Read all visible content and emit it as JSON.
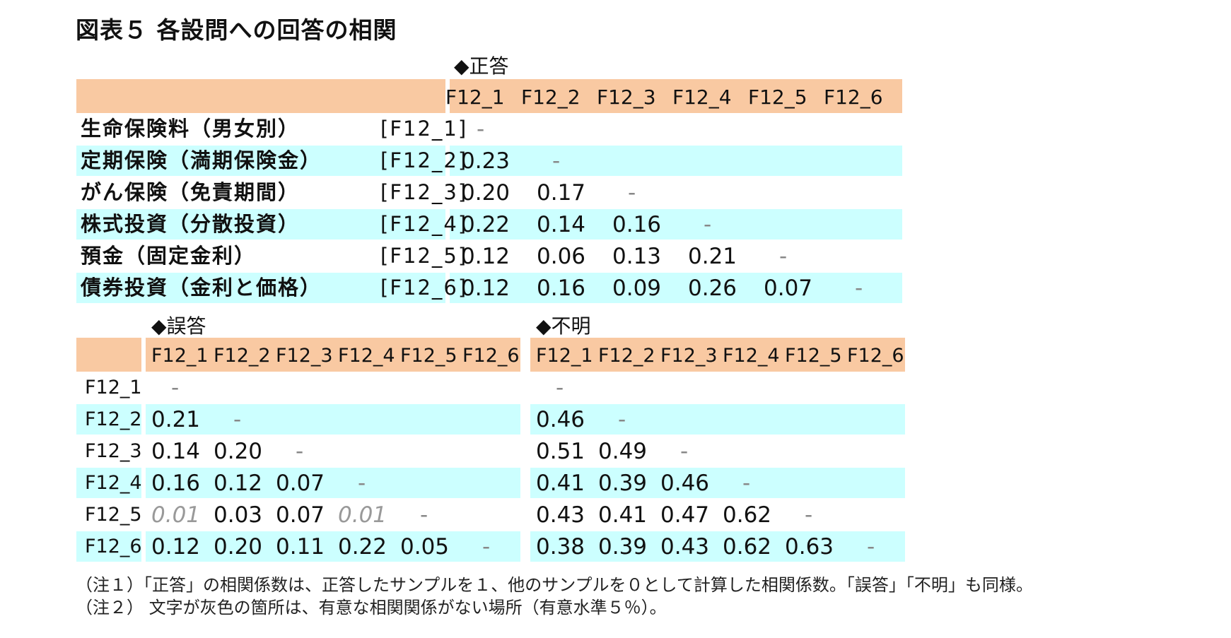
{
  "title": "図表５ 各設問への回答の相関",
  "chart_data": [
    {
      "type": "table",
      "title": "◆正答",
      "columns": [
        "F12_1",
        "F12_2",
        "F12_3",
        "F12_4",
        "F12_5",
        "F12_6"
      ],
      "rows": [
        {
          "label": "生命保険料（男女別）",
          "code": "[F12_1]",
          "values": [
            "-"
          ]
        },
        {
          "label": "定期保険（満期保険金）",
          "code": "[F12_2]",
          "values": [
            "0.23",
            "-"
          ]
        },
        {
          "label": "がん保険（免責期間）",
          "code": "[F12_3]",
          "values": [
            "0.20",
            "0.17",
            "-"
          ]
        },
        {
          "label": "株式投資（分散投資）",
          "code": "[F12_4]",
          "values": [
            "0.22",
            "0.14",
            "0.16",
            "-"
          ]
        },
        {
          "label": "預金（固定金利）",
          "code": "[F12_5]",
          "values": [
            "0.12",
            "0.06",
            "0.13",
            "0.21",
            "-"
          ]
        },
        {
          "label": "債券投資（金利と価格）",
          "code": "[F12_6]",
          "values": [
            "0.12",
            "0.16",
            "0.09",
            "0.26",
            "0.07",
            "-"
          ]
        }
      ]
    },
    {
      "type": "table",
      "title": "◆誤答",
      "columns": [
        "F12_1",
        "F12_2",
        "F12_3",
        "F12_4",
        "F12_5",
        "F12_6"
      ],
      "row_labels": [
        "F12_1",
        "F12_2",
        "F12_3",
        "F12_4",
        "F12_5",
        "F12_6"
      ],
      "rows": [
        [
          "-"
        ],
        [
          "0.21",
          "-"
        ],
        [
          "0.14",
          "0.20",
          "-"
        ],
        [
          "0.16",
          "0.12",
          "0.07",
          "-"
        ],
        [
          "0.01",
          "0.03",
          "0.07",
          "0.01",
          "-"
        ],
        [
          "0.12",
          "0.20",
          "0.11",
          "0.22",
          "0.05",
          "-"
        ]
      ],
      "not_significant": [
        [
          4,
          0
        ],
        [
          4,
          3
        ]
      ]
    },
    {
      "type": "table",
      "title": "◆不明",
      "columns": [
        "F12_1",
        "F12_2",
        "F12_3",
        "F12_4",
        "F12_5",
        "F12_6"
      ],
      "rows": [
        [
          "-"
        ],
        [
          "0.46",
          "-"
        ],
        [
          "0.51",
          "0.49",
          "-"
        ],
        [
          "0.41",
          "0.39",
          "0.46",
          "-"
        ],
        [
          "0.43",
          "0.41",
          "0.47",
          "0.62",
          "-"
        ],
        [
          "0.38",
          "0.39",
          "0.43",
          "0.62",
          "0.63",
          "-"
        ]
      ]
    }
  ],
  "colors": {
    "header": "#f9c9a2",
    "band": "#ccffff",
    "not_significant_text": "#999999"
  },
  "notes": [
    "（注１）「正答」の相関係数は、正答したサンプルを１、他のサンプルを０として計算した相関係数。「誤答」「不明」も同様。",
    "（注２） 文字が灰色の箇所は、有意な相関関係がない場所（有意水準５％）。"
  ]
}
